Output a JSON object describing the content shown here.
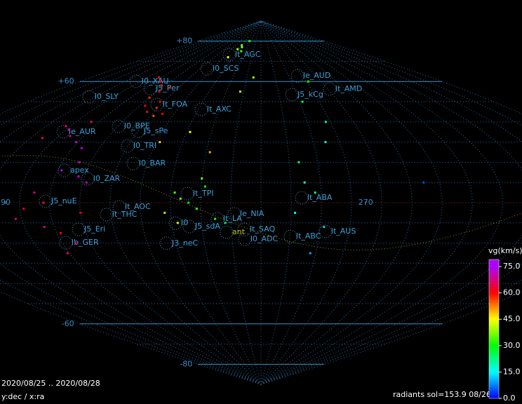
{
  "chart_data": {
    "type": "scatter",
    "title": "radiants sol=153.9 08/26",
    "date_range": "2020/08/25 .. 2020/08/28",
    "axes_note": "y:dec / x:ra",
    "xticks": [
      90,
      270
    ],
    "yticks": [
      {
        "value": 80,
        "label": "+80"
      },
      {
        "value": 60,
        "label": "+60"
      },
      {
        "value": -60,
        "label": "-60"
      },
      {
        "value": -80,
        "label": "-80"
      }
    ],
    "grid": true,
    "colorbar": {
      "title": "vg(km/s)",
      "clim": [
        0,
        79
      ],
      "ticks": [
        {
          "value": 0,
          "label": "0.0"
        },
        {
          "value": 15,
          "label": "15.0"
        },
        {
          "value": 30,
          "label": "30.0"
        },
        {
          "value": 45,
          "label": "45.0"
        },
        {
          "value": 60,
          "label": "60.0"
        },
        {
          "value": 75,
          "label": "75.0"
        }
      ],
      "colors": [
        "#0000ff",
        "#00ffff",
        "#00ff00",
        "#ffff00",
        "#ff0000",
        "#b000ff"
      ]
    },
    "series": [
      {
        "name": "radiants",
        "x": [
          110,
          118,
          125,
          130,
          135,
          140,
          142,
          138,
          132,
          128,
          145,
          150,
          172,
          176,
          170,
          180,
          165,
          185,
          95,
          100,
          105,
          112,
          108,
          90,
          118,
          122,
          115,
          125,
          130,
          105,
          110,
          100,
          95,
          108,
          115,
          120,
          128,
          112,
          175,
          178,
          182,
          186,
          170,
          190,
          195,
          200,
          188,
          176,
          240,
          245,
          235,
          250,
          238,
          255,
          260,
          250,
          265,
          245,
          300,
          160,
          175,
          190,
          200,
          210
        ],
        "y": [
          62,
          60,
          58,
          55,
          57,
          50,
          47,
          45,
          48,
          52,
          43,
          44,
          78,
          77,
          76,
          75,
          72,
          80,
          38,
          36,
          33,
          30,
          40,
          32,
          27,
          20,
          16,
          13,
          10,
          5,
          0,
          -3,
          -8,
          -12,
          -15,
          -20,
          -5,
          -25,
          5,
          2,
          0,
          -3,
          -5,
          8,
          -8,
          -10,
          12,
          -10,
          10,
          5,
          -5,
          -12,
          20,
          30,
          40,
          50,
          60,
          -25,
          10,
          30,
          35,
          25,
          55,
          62
        ],
        "vg": [
          60,
          62,
          58,
          60,
          59,
          61,
          58,
          60,
          63,
          57,
          55,
          60,
          35,
          38,
          40,
          33,
          45,
          30,
          65,
          68,
          70,
          72,
          66,
          67,
          74,
          70,
          75,
          72,
          70,
          68,
          66,
          64,
          66,
          68,
          63,
          66,
          62,
          65,
          35,
          38,
          30,
          33,
          40,
          28,
          32,
          25,
          36,
          42,
          18,
          20,
          15,
          12,
          22,
          18,
          20,
          25,
          30,
          10,
          5,
          48,
          45,
          50,
          42,
          40
        ]
      }
    ],
    "showers": [
      {
        "name": "lt_AGC",
        "ra": 173.1,
        "dec": 73.3
      },
      {
        "name": "l0_SCS",
        "ra": 158.3,
        "dec": 66.3
      },
      {
        "name": "le_AUD",
        "ra": 263.7,
        "dec": 62.8
      },
      {
        "name": "l0_XAU",
        "ra": 99.1,
        "dec": 60.1
      },
      {
        "name": "lt_AMD",
        "ra": 284.5,
        "dec": 56.3
      },
      {
        "name": "J5_Per",
        "ra": 123.1,
        "dec": 56.6
      },
      {
        "name": "J5_kCg",
        "ra": 248.5,
        "dec": 53.5
      },
      {
        "name": "l0_SLY",
        "ra": 82.6,
        "dec": 52.4
      },
      {
        "name": "lt_FOA",
        "ra": 144.2,
        "dec": 48.6
      },
      {
        "name": "lt_AXC",
        "ra": 179.2,
        "dec": 46.2
      },
      {
        "name": "l0_BPE",
        "ra": 132,
        "dec": 37.8
      },
      {
        "name": "J5_sPe",
        "ra": 146.6,
        "dec": 35.4
      },
      {
        "name": "le_AUR",
        "ra": 101.3,
        "dec": 35.1
      },
      {
        "name": "l0_TRI",
        "ra": 146.1,
        "dec": 28.1
      },
      {
        "name": "l0_BAR",
        "ra": 153.7,
        "dec": 19.4
      },
      {
        "name": "apex",
        "ra": 119.4,
        "dec": 16
      },
      {
        "name": "l0_ZAR",
        "ra": 132.9,
        "dec": 11.8
      },
      {
        "name": "lt_TPI",
        "ra": 184.1,
        "dec": 4.5
      },
      {
        "name": "lt_ABA",
        "ra": 241,
        "dec": 2.4
      },
      {
        "name": "J5_nuE",
        "ra": 113.8,
        "dec": 0.7
      },
      {
        "name": "lt_AOC",
        "ra": 150.4,
        "dec": -2.1
      },
      {
        "name": "lt_THC",
        "ra": 143.7,
        "dec": -5.9
      },
      {
        "name": "le_NIA",
        "ra": 207.5,
        "dec": -5.6
      },
      {
        "name": "lt_LA",
        "ra": 199,
        "dec": -8
      },
      {
        "name": "l0",
        "ra": 177.7,
        "dec": -10.1
      },
      {
        "name": "J5_sdA",
        "ra": 184.5,
        "dec": -11.8
      },
      {
        "name": "J5_Eri",
        "ra": 127.8,
        "dec": -13.2
      },
      {
        "name": "lt_SAQ",
        "ra": 212.3,
        "dec": -13.2
      },
      {
        "name": "lt_AUS",
        "ra": 253.9,
        "dec": -14.2
      },
      {
        "name": "lt_ABC",
        "ra": 236.2,
        "dec": -16.7
      },
      {
        "name": "l0_ADC",
        "ra": 212.5,
        "dec": -18.1
      },
      {
        "name": "lb_GER",
        "ra": 118,
        "dec": -19.8
      },
      {
        "name": "J3_neC",
        "ra": 170.9,
        "dec": -20.1
      },
      {
        "name": "ant",
        "ra": 203.2,
        "dec": -14.6
      }
    ]
  }
}
